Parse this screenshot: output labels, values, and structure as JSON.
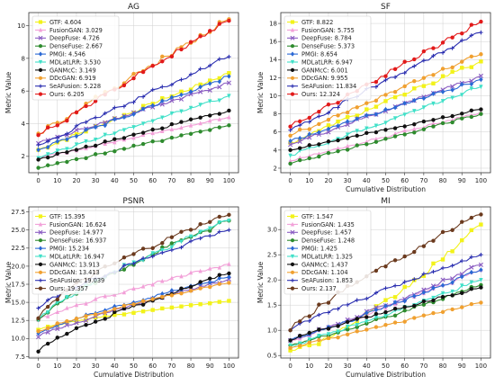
{
  "chart_data": [
    {
      "type": "line",
      "title": "AG",
      "xlabel": "",
      "ylabel": "Metric Value",
      "xlim": [
        -5,
        105
      ],
      "ylim": [
        1.0,
        10.8
      ],
      "xticks": [
        0,
        10,
        20,
        30,
        40,
        50,
        60,
        70,
        80,
        90,
        100
      ],
      "yticks": [
        2,
        4,
        6,
        8,
        10
      ],
      "legend_position": "top-left",
      "grid": true,
      "series": [
        {
          "label": "GTF: 4.604",
          "color": "#f2f21a",
          "marker": "square",
          "start": 2.4,
          "end": 7.1,
          "curve": 1.0
        },
        {
          "label": "FusionGAN: 3.029",
          "color": "#f2a0d8",
          "marker": "triangle",
          "start": 1.9,
          "end": 4.4,
          "curve": 1.0
        },
        {
          "label": "DeepFuse: 4.726",
          "color": "#8a5cc2",
          "marker": "x",
          "start": 2.8,
          "end": 6.5,
          "curve": 1.0
        },
        {
          "label": "DenseFuse: 2.667",
          "color": "#2e8b2e",
          "marker": "circle",
          "start": 1.3,
          "end": 3.9,
          "curve": 1.0
        },
        {
          "label": "PMGI: 4.546",
          "color": "#2a68d4",
          "marker": "diamond",
          "start": 2.4,
          "end": 6.9,
          "curve": 1.0
        },
        {
          "label": "MDLatLRR: 3.530",
          "color": "#40e0c8",
          "marker": "triangle-down",
          "start": 1.9,
          "end": 5.7,
          "curve": 1.0
        },
        {
          "label": "GANMcC: 3.149",
          "color": "#111111",
          "marker": "circle",
          "start": 1.8,
          "end": 4.8,
          "curve": 1.0
        },
        {
          "label": "DDcGAN: 6.919",
          "color": "#f0a030",
          "marker": "circle",
          "start": 3.4,
          "end": 10.4,
          "curve": 1.0
        },
        {
          "label": "SeAFusion: 5.228",
          "color": "#2b2fb0",
          "marker": "plus",
          "start": 2.7,
          "end": 8.1,
          "curve": 1.0
        },
        {
          "label": "Ours: 6.205",
          "color": "#e21a1a",
          "marker": "circle",
          "start": 3.3,
          "end": 10.3,
          "curve": 1.0
        }
      ]
    },
    {
      "type": "line",
      "title": "SF",
      "xlabel": "Cumulative Distribution",
      "ylabel": "Metric Value",
      "xlim": [
        -5,
        105
      ],
      "ylim": [
        1.5,
        19.2
      ],
      "xticks": [
        0,
        10,
        20,
        30,
        40,
        50,
        60,
        70,
        80,
        90,
        100
      ],
      "yticks": [
        2,
        4,
        6,
        8,
        10,
        12,
        14,
        16,
        18
      ],
      "legend_position": "top-left",
      "grid": true,
      "series": [
        {
          "label": "GTF: 8.822",
          "color": "#f2f21a",
          "marker": "square",
          "start": 4.8,
          "end": 13.8,
          "curve": 1.0
        },
        {
          "label": "FusionGAN: 5.755",
          "color": "#f2a0d8",
          "marker": "triangle",
          "start": 2.8,
          "end": 8.2,
          "curve": 1.0
        },
        {
          "label": "DeepFuse: 8.784",
          "color": "#8a5cc2",
          "marker": "x",
          "start": 4.6,
          "end": 12.2,
          "curve": 1.0
        },
        {
          "label": "DenseFuse: 5.373",
          "color": "#2e8b2e",
          "marker": "circle",
          "start": 2.5,
          "end": 8.0,
          "curve": 1.0
        },
        {
          "label": "PMGI: 8.654",
          "color": "#2a68d4",
          "marker": "diamond",
          "start": 5.0,
          "end": 11.8,
          "curve": 1.0
        },
        {
          "label": "MDLatLRR: 6.947",
          "color": "#40e0c8",
          "marker": "triangle-down",
          "start": 3.4,
          "end": 11.0,
          "curve": 1.0
        },
        {
          "label": "GANMcC: 6.001",
          "color": "#111111",
          "marker": "circle",
          "start": 4.0,
          "end": 8.5,
          "curve": 1.0
        },
        {
          "label": "DDcGAN: 9.955",
          "color": "#f0a030",
          "marker": "circle",
          "start": 5.6,
          "end": 14.6,
          "curve": 1.0
        },
        {
          "label": "SeAFusion: 11.834",
          "color": "#2b2fb0",
          "marker": "plus",
          "start": 6.2,
          "end": 17.0,
          "curve": 1.0
        },
        {
          "label": "Ours: 12.324",
          "color": "#e21a1a",
          "marker": "circle",
          "start": 6.6,
          "end": 18.2,
          "curve": 1.0
        }
      ]
    },
    {
      "type": "line",
      "title": "PSNR",
      "xlabel": "Cumulative Distribution",
      "ylabel": "Metric Value",
      "xlim": [
        -5,
        105
      ],
      "ylim": [
        7.3,
        28.2
      ],
      "xticks": [
        0,
        10,
        20,
        30,
        40,
        50,
        60,
        70,
        80,
        90,
        100
      ],
      "yticks": [
        7.5,
        10.0,
        12.5,
        15.0,
        17.5,
        20.0,
        22.5,
        25.0,
        27.5
      ],
      "legend_position": "top-left",
      "grid": true,
      "series": [
        {
          "label": "GTF: 15.395",
          "color": "#f2f21a",
          "marker": "square",
          "start": 11.2,
          "end": 15.2,
          "curve": 0.75
        },
        {
          "label": "FusionGAN: 16.624",
          "color": "#f2a0d8",
          "marker": "triangle",
          "start": 12.6,
          "end": 20.3,
          "curve": 0.85
        },
        {
          "label": "DeepFuse: 14.977",
          "color": "#8a5cc2",
          "marker": "x",
          "start": 10.2,
          "end": 18.2,
          "curve": 0.85
        },
        {
          "label": "DenseFuse: 16.937",
          "color": "#2e8b2e",
          "marker": "circle",
          "start": 12.6,
          "end": 26.3,
          "curve": 0.8
        },
        {
          "label": "PMGI: 15.234",
          "color": "#2a68d4",
          "marker": "diamond",
          "start": 10.7,
          "end": 18.5,
          "curve": 0.85
        },
        {
          "label": "MDLatLRR: 16.947",
          "color": "#40e0c8",
          "marker": "triangle-down",
          "start": 12.6,
          "end": 26.3,
          "curve": 0.8
        },
        {
          "label": "GANMcC: 13.913",
          "color": "#111111",
          "marker": "circle",
          "start": 8.2,
          "end": 19.0,
          "curve": 0.8
        },
        {
          "label": "DDcGAN: 13.413",
          "color": "#f0a030",
          "marker": "circle",
          "start": 11.0,
          "end": 17.7,
          "curve": 0.85
        },
        {
          "label": "SeAFusion: 19.039",
          "color": "#2b2fb0",
          "marker": "plus",
          "start": 14.2,
          "end": 25.0,
          "curve": 0.8
        },
        {
          "label": "Ours: 19.357",
          "color": "#6b3a1e",
          "marker": "circle",
          "start": 12.8,
          "end": 27.1,
          "curve": 0.7
        }
      ]
    },
    {
      "type": "line",
      "title": "MI",
      "xlabel": "Cumulative Distribution",
      "ylabel": "Metric Value",
      "xlim": [
        -5,
        105
      ],
      "ylim": [
        0.45,
        3.45
      ],
      "xticks": [
        0,
        10,
        20,
        30,
        40,
        50,
        60,
        70,
        80,
        90,
        100
      ],
      "yticks": [
        0.5,
        1.0,
        1.5,
        2.0,
        2.5,
        3.0
      ],
      "legend_position": "top-left",
      "grid": true,
      "series": [
        {
          "label": "GTF: 1.547",
          "color": "#f2f21a",
          "marker": "square",
          "start": 0.6,
          "end": 3.1,
          "curve": 1.4
        },
        {
          "label": "FusionGAN: 1.435",
          "color": "#f2a0d8",
          "marker": "triangle",
          "start": 0.8,
          "end": 2.2,
          "curve": 1.1
        },
        {
          "label": "DeepFuse: 1.457",
          "color": "#8a5cc2",
          "marker": "x",
          "start": 0.8,
          "end": 2.3,
          "curve": 1.1
        },
        {
          "label": "DenseFuse: 1.248",
          "color": "#2e8b2e",
          "marker": "circle",
          "start": 0.7,
          "end": 1.9,
          "curve": 1.1
        },
        {
          "label": "PMGI: 1.425",
          "color": "#2a68d4",
          "marker": "diamond",
          "start": 0.8,
          "end": 2.2,
          "curve": 1.1
        },
        {
          "label": "MDLatLRR: 1.325",
          "color": "#40e0c8",
          "marker": "triangle-down",
          "start": 0.7,
          "end": 2.0,
          "curve": 1.1
        },
        {
          "label": "GANMcC: 1.437",
          "color": "#111111",
          "marker": "circle",
          "start": 0.8,
          "end": 1.85,
          "curve": 0.9
        },
        {
          "label": "DDcGAN: 1.104",
          "color": "#f0a030",
          "marker": "circle",
          "start": 0.65,
          "end": 1.55,
          "curve": 1.0
        },
        {
          "label": "SeAFusion: 1.853",
          "color": "#2b2fb0",
          "marker": "plus",
          "start": 1.0,
          "end": 2.5,
          "curve": 0.9
        },
        {
          "label": "Ours: 2.137",
          "color": "#6b3a1e",
          "marker": "circle",
          "start": 1.0,
          "end": 3.3,
          "curve": 0.85
        }
      ]
    }
  ]
}
